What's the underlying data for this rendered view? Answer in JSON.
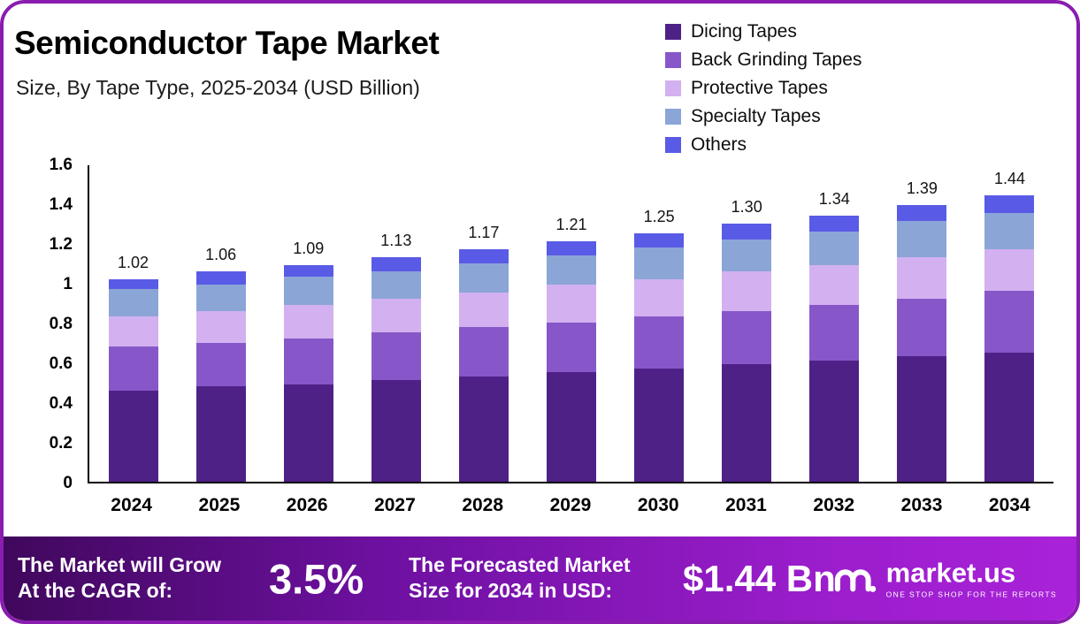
{
  "header": {
    "title": "Semiconductor Tape Market",
    "subtitle": "Size, By Tape Type, 2025-2034 (USD Billion)"
  },
  "chart_data": {
    "type": "bar",
    "stacked": true,
    "title": "Semiconductor Tape Market",
    "subtitle": "Size, By Tape Type, 2025-2034 (USD Billion)",
    "xlabel": "",
    "ylabel": "",
    "ylim": [
      0,
      1.6
    ],
    "ytick_labels": [
      "1.6",
      "1.4",
      "1.2",
      "1",
      "0.8",
      "0.6",
      "0.4",
      "0.2",
      "0"
    ],
    "grid": false,
    "legend_position": "top-right",
    "categories": [
      "2024",
      "2025",
      "2026",
      "2027",
      "2028",
      "2029",
      "2030",
      "2031",
      "2032",
      "2033",
      "2034"
    ],
    "series": [
      {
        "name": "Dicing Tapes",
        "color": "#4e2187",
        "values": [
          0.46,
          0.48,
          0.49,
          0.51,
          0.53,
          0.55,
          0.57,
          0.59,
          0.61,
          0.63,
          0.65
        ]
      },
      {
        "name": "Back Grinding Tapes",
        "color": "#8757c9",
        "values": [
          0.22,
          0.22,
          0.23,
          0.24,
          0.25,
          0.25,
          0.26,
          0.27,
          0.28,
          0.29,
          0.31
        ]
      },
      {
        "name": "Protective Tapes",
        "color": "#d3b1f0",
        "values": [
          0.15,
          0.16,
          0.17,
          0.17,
          0.17,
          0.19,
          0.19,
          0.2,
          0.2,
          0.21,
          0.21
        ]
      },
      {
        "name": "Specialty Tapes",
        "color": "#8ba5d7",
        "values": [
          0.14,
          0.13,
          0.14,
          0.14,
          0.15,
          0.15,
          0.16,
          0.16,
          0.17,
          0.18,
          0.18
        ]
      },
      {
        "name": "Others",
        "color": "#595be6",
        "values": [
          0.05,
          0.07,
          0.06,
          0.07,
          0.07,
          0.07,
          0.07,
          0.08,
          0.08,
          0.08,
          0.09
        ]
      }
    ],
    "totals": [
      1.02,
      1.06,
      1.09,
      1.13,
      1.17,
      1.21,
      1.25,
      1.3,
      1.34,
      1.39,
      1.44
    ],
    "total_labels": [
      "1.02",
      "1.06",
      "1.09",
      "1.13",
      "1.17",
      "1.21",
      "1.25",
      "1.30",
      "1.34",
      "1.39",
      "1.44"
    ]
  },
  "banner": {
    "cagr_label_line1": "The Market will Grow",
    "cagr_label_line2": "At the CAGR of:",
    "cagr_value": "3.5%",
    "forecast_label_line1": "The Forecasted Market",
    "forecast_label_line2": "Size for 2034 in USD:",
    "forecast_value": "$1.44 Bn",
    "logo_text": "market.us",
    "logo_tagline": "ONE STOP SHOP FOR THE REPORTS"
  }
}
